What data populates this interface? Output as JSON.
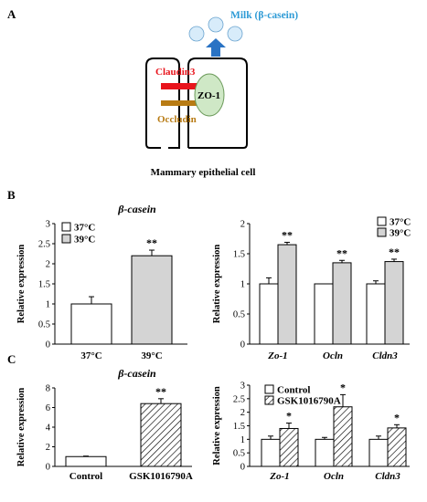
{
  "panel_labels": {
    "a": "A",
    "b": "B",
    "c": "C"
  },
  "diagram": {
    "milk_label": "Milk (β-casein)",
    "claudin_label": "Claudin3",
    "zo1_label": "ZO-1",
    "occludin_label": "Occludin",
    "cell_label": "Mammary epithelial cell",
    "colors": {
      "milk": "#2e9bd6",
      "arrow": "#2a73c4",
      "bubble": "#d8ecfa",
      "claudin": "#e8141c",
      "occludin": "#b87b14",
      "zo1": "#cfe8c6"
    }
  },
  "chart_data": [
    {
      "id": "b1",
      "type": "bar",
      "title": "β-casein",
      "ylabel": "Relative expression",
      "ylim": [
        0,
        3
      ],
      "yticks": [
        "0",
        "0.5",
        "1",
        "1.5",
        "2",
        "2.5",
        "3"
      ],
      "categories": [
        "37°C",
        "39°C"
      ],
      "series": [
        {
          "name": "37°C",
          "color": "#ffffff",
          "values": [
            1.0,
            null
          ],
          "errors": [
            0.18,
            null
          ]
        },
        {
          "name": "39°C",
          "color": "#d4d4d4",
          "values": [
            null,
            2.2
          ],
          "errors": [
            null,
            0.14
          ]
        }
      ],
      "annotations": [
        {
          "category": "39°C",
          "text": "**"
        }
      ],
      "legend": "top-left"
    },
    {
      "id": "b2",
      "type": "bar",
      "ylabel": "Relative expression",
      "ylim": [
        0,
        2
      ],
      "yticks": [
        "0",
        "0.5",
        "1",
        "1.5",
        "2"
      ],
      "categories": [
        "Zo-1",
        "Ocln",
        "Cldn3"
      ],
      "series": [
        {
          "name": "37°C",
          "color": "#ffffff",
          "values": [
            1.0,
            1.0,
            1.0
          ],
          "errors": [
            0.1,
            0.0,
            0.05
          ]
        },
        {
          "name": "39°C",
          "color": "#d4d4d4",
          "values": [
            1.65,
            1.35,
            1.37
          ],
          "errors": [
            0.04,
            0.04,
            0.04
          ]
        }
      ],
      "annotations": [
        "**",
        "**",
        "**"
      ],
      "legend": "top-right"
    },
    {
      "id": "c1",
      "type": "bar",
      "title": "β-casein",
      "ylabel": "Relative expression",
      "ylim": [
        0,
        8
      ],
      "yticks": [
        "0",
        "2",
        "4",
        "6",
        "8"
      ],
      "categories": [
        "Control",
        "GSK1016790A"
      ],
      "series": [
        {
          "name": "Control",
          "color": "#ffffff",
          "values": [
            1.0,
            null
          ],
          "errors": [
            0.05,
            null
          ]
        },
        {
          "name": "GSK1016790A",
          "color": "hatched",
          "values": [
            null,
            6.4
          ],
          "errors": [
            null,
            0.5
          ]
        }
      ],
      "annotations": [
        {
          "category": "GSK1016790A",
          "text": "**"
        }
      ]
    },
    {
      "id": "c2",
      "type": "bar",
      "ylabel": "Relative expression",
      "ylim": [
        0,
        3
      ],
      "yticks": [
        "0",
        "0.5",
        "1",
        "1.5",
        "2",
        "2.5",
        "3"
      ],
      "categories": [
        "Zo-1",
        "Ocln",
        "Cldn3"
      ],
      "series": [
        {
          "name": "Control",
          "color": "#ffffff",
          "values": [
            1.0,
            1.0,
            1.0
          ],
          "errors": [
            0.12,
            0.07,
            0.12
          ]
        },
        {
          "name": "GSK1016790A",
          "color": "hatched",
          "values": [
            1.4,
            2.2,
            1.42
          ],
          "errors": [
            0.2,
            0.45,
            0.12
          ]
        }
      ],
      "annotations": [
        "*",
        "*",
        "*"
      ],
      "legend": "top-left"
    }
  ]
}
